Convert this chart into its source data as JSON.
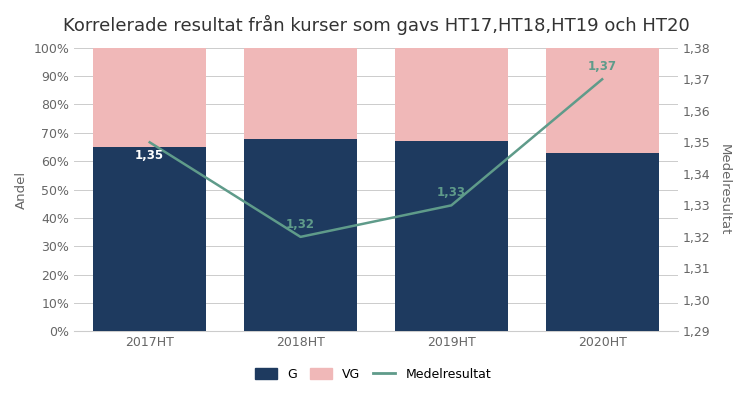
{
  "title": "Korrelerade resultat från kurser som gavs HT17,HT18,HT19 och HT20",
  "categories": [
    "2017HT",
    "2018HT",
    "2019HT",
    "2020HT"
  ],
  "g_values": [
    0.65,
    0.68,
    0.67,
    0.63
  ],
  "vg_values": [
    0.35,
    0.32,
    0.33,
    0.37
  ],
  "medelresultat": [
    1.35,
    1.32,
    1.33,
    1.37
  ],
  "medelresultat_labels": [
    "1,35",
    "1,32",
    "1,33",
    "1,37"
  ],
  "label_colors": [
    "white",
    "#5f9b8a",
    "#5f9b8a",
    "#5f9b8a"
  ],
  "label_va": [
    "top",
    "bottom",
    "bottom",
    "bottom"
  ],
  "label_offsets": [
    -0.002,
    0.002,
    0.002,
    0.002
  ],
  "bar_color_g": "#1e3a5f",
  "bar_color_vg": "#f0b8b8",
  "line_color": "#5f9b8a",
  "ylabel_left": "Andel",
  "ylabel_right": "Medelresultat",
  "ylim_left": [
    0,
    1
  ],
  "ylim_right": [
    1.29,
    1.38
  ],
  "yticks_left": [
    0,
    0.1,
    0.2,
    0.3,
    0.4,
    0.5,
    0.6,
    0.7,
    0.8,
    0.9,
    1.0
  ],
  "ytick_labels_left": [
    "0%",
    "10%",
    "20%",
    "30%",
    "40%",
    "50%",
    "60%",
    "70%",
    "80%",
    "90%",
    "100%"
  ],
  "yticks_right": [
    1.29,
    1.3,
    1.31,
    1.32,
    1.33,
    1.34,
    1.35,
    1.36,
    1.37,
    1.38
  ],
  "ytick_labels_right": [
    "1,29",
    "1,30",
    "1,31",
    "1,32",
    "1,33",
    "1,34",
    "1,35",
    "1,36",
    "1,37",
    "1,38"
  ],
  "legend_labels": [
    "G",
    "VG",
    "Medelresultat"
  ],
  "background_color": "#ffffff",
  "grid_color": "#cccccc",
  "title_fontsize": 13,
  "label_fontsize": 9.5,
  "tick_fontsize": 9,
  "bar_width": 0.75
}
